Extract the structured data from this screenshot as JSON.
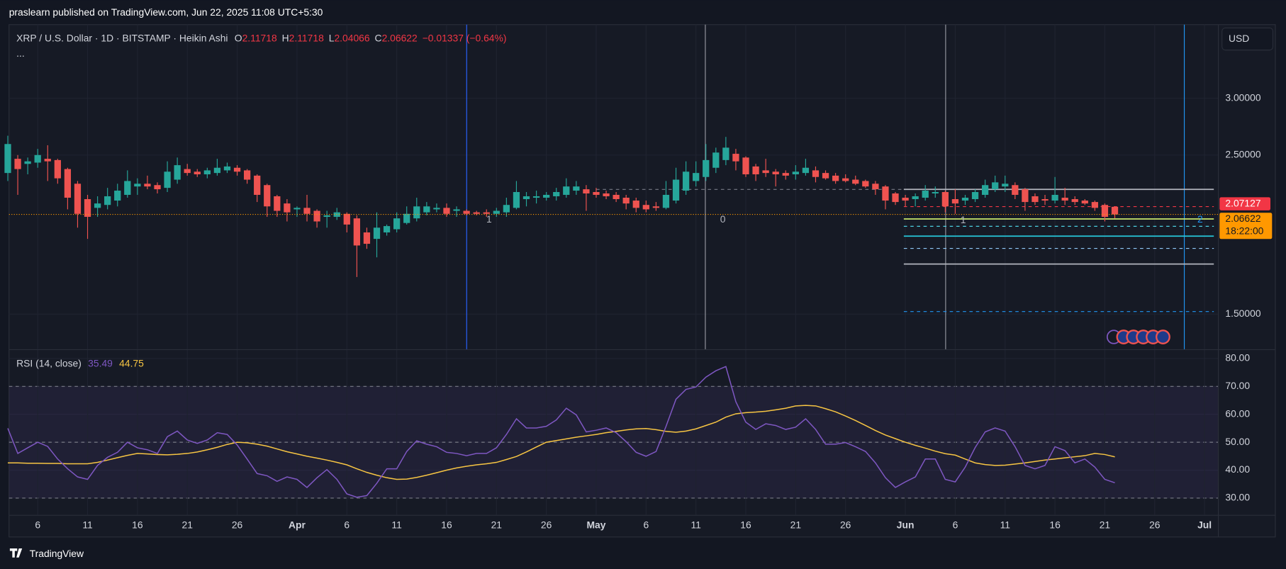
{
  "header": {
    "publish": "praslearn published on TradingView.com, Jun 22, 2025 11:08 UTC+5:30",
    "brand": "TradingView"
  },
  "chart_data": {
    "type": "candlestick",
    "title": "XRP / U.S. Dollar · 1D · BITSTAMP · Heikin Ashi",
    "more": "...",
    "ohlc_labels": [
      "O",
      "H",
      "L",
      "C"
    ],
    "change": "−0.01337 (−0.64%)",
    "currency": "USD",
    "log": true,
    "ylim": [
      1.34,
      3.8
    ],
    "yticks": [
      {
        "value": 3,
        "label": "3.00000"
      },
      {
        "value": 2.5,
        "label": "2.50000"
      },
      {
        "value": 1.5,
        "label": "1.50000"
      }
    ],
    "grid": true,
    "up_color": "#26a69a",
    "down_color": "#ef5350",
    "price_marker": 2.07127,
    "countdown": "18:22:00",
    "fib_labels": [
      "1",
      "0",
      "1",
      "2"
    ],
    "categories": [
      null,
      null,
      null,
      "6",
      null,
      null,
      null,
      null,
      "11",
      null,
      null,
      null,
      null,
      "16",
      null,
      null,
      null,
      null,
      "21",
      null,
      null,
      null,
      null,
      "26",
      null,
      null,
      null,
      null,
      null,
      "Apr",
      null,
      null,
      null,
      null,
      "6",
      null,
      null,
      null,
      null,
      "11",
      null,
      null,
      null,
      null,
      "16",
      null,
      null,
      null,
      null,
      "21",
      null,
      null,
      null,
      null,
      "26",
      null,
      null,
      null,
      null,
      "May",
      null,
      null,
      null,
      null,
      "6",
      null,
      null,
      null,
      null,
      "11",
      null,
      null,
      null,
      null,
      "16",
      null,
      null,
      null,
      null,
      "21",
      null,
      null,
      null,
      null,
      "26",
      null,
      null,
      null,
      null,
      null,
      "Jun",
      null,
      null,
      null,
      null,
      "6",
      null,
      null,
      null,
      null,
      "11",
      null,
      null,
      null,
      null,
      "16",
      null,
      null,
      null,
      null,
      "21",
      null,
      null,
      null,
      null,
      "26",
      null,
      null,
      null,
      null,
      "Jul"
    ],
    "ohlc": [
      [
        2.36,
        2.66,
        2.3,
        2.59
      ],
      [
        2.47,
        2.5,
        2.2,
        2.39
      ],
      [
        2.43,
        2.48,
        2.35,
        2.45
      ],
      [
        2.44,
        2.55,
        2.4,
        2.5
      ],
      [
        2.47,
        2.58,
        2.3,
        2.45
      ],
      [
        2.46,
        2.47,
        2.28,
        2.32
      ],
      [
        2.39,
        2.4,
        2.1,
        2.18
      ],
      [
        2.28,
        2.3,
        1.98,
        2.07
      ],
      [
        2.17,
        2.2,
        1.91,
        2.05
      ],
      [
        2.11,
        2.19,
        2.05,
        2.14
      ],
      [
        2.13,
        2.25,
        2.1,
        2.19
      ],
      [
        2.16,
        2.28,
        2.12,
        2.23
      ],
      [
        2.2,
        2.38,
        2.18,
        2.3
      ],
      [
        2.26,
        2.32,
        2.2,
        2.28
      ],
      [
        2.28,
        2.34,
        2.24,
        2.26
      ],
      [
        2.27,
        2.29,
        2.21,
        2.24
      ],
      [
        2.25,
        2.45,
        2.22,
        2.37
      ],
      [
        2.31,
        2.48,
        2.28,
        2.42
      ],
      [
        2.39,
        2.43,
        2.34,
        2.36
      ],
      [
        2.37,
        2.39,
        2.33,
        2.35
      ],
      [
        2.35,
        2.4,
        2.32,
        2.38
      ],
      [
        2.36,
        2.47,
        2.34,
        2.4
      ],
      [
        2.38,
        2.44,
        2.36,
        2.41
      ],
      [
        2.4,
        2.42,
        2.34,
        2.37
      ],
      [
        2.38,
        2.39,
        2.28,
        2.31
      ],
      [
        2.34,
        2.35,
        2.15,
        2.2
      ],
      [
        2.27,
        2.28,
        2.05,
        2.12
      ],
      [
        2.19,
        2.2,
        2.05,
        2.09
      ],
      [
        2.14,
        2.17,
        2.02,
        2.08
      ],
      [
        2.1,
        2.12,
        2.05,
        2.11
      ],
      [
        2.11,
        2.2,
        2.02,
        2.07
      ],
      [
        2.09,
        2.1,
        1.98,
        2.02
      ],
      [
        2.05,
        2.09,
        1.98,
        2.06
      ],
      [
        2.05,
        2.11,
        2.03,
        2.08
      ],
      [
        2.07,
        2.08,
        1.95,
        2.0
      ],
      [
        2.04,
        2.06,
        1.69,
        1.87
      ],
      [
        1.95,
        1.98,
        1.85,
        1.88
      ],
      [
        1.91,
        2.08,
        1.8,
        1.98
      ],
      [
        1.95,
        2.0,
        1.93,
        1.99
      ],
      [
        1.97,
        2.08,
        1.95,
        2.04
      ],
      [
        2.01,
        2.12,
        2.0,
        2.07
      ],
      [
        2.04,
        2.18,
        2.02,
        2.12
      ],
      [
        2.08,
        2.15,
        2.06,
        2.12
      ],
      [
        2.1,
        2.14,
        2.08,
        2.11
      ],
      [
        2.11,
        2.14,
        2.05,
        2.07
      ],
      [
        2.09,
        2.12,
        2.05,
        2.1
      ],
      [
        2.09,
        2.1,
        2.06,
        2.07
      ],
      [
        2.08,
        2.09,
        2.06,
        2.07
      ],
      [
        2.08,
        2.1,
        2.05,
        2.07
      ],
      [
        2.07,
        2.11,
        2.05,
        2.09
      ],
      [
        2.08,
        2.18,
        2.05,
        2.13
      ],
      [
        2.11,
        2.3,
        2.1,
        2.22
      ],
      [
        2.17,
        2.22,
        2.12,
        2.19
      ],
      [
        2.18,
        2.23,
        2.14,
        2.19
      ],
      [
        2.18,
        2.22,
        2.16,
        2.2
      ],
      [
        2.19,
        2.25,
        2.16,
        2.22
      ],
      [
        2.2,
        2.32,
        2.18,
        2.26
      ],
      [
        2.23,
        2.3,
        2.2,
        2.26
      ],
      [
        2.24,
        2.27,
        2.09,
        2.21
      ],
      [
        2.22,
        2.25,
        2.18,
        2.2
      ],
      [
        2.21,
        2.23,
        2.17,
        2.19
      ],
      [
        2.2,
        2.22,
        2.15,
        2.17
      ],
      [
        2.18,
        2.2,
        2.1,
        2.14
      ],
      [
        2.16,
        2.18,
        2.08,
        2.11
      ],
      [
        2.13,
        2.16,
        2.08,
        2.1
      ],
      [
        2.12,
        2.15,
        2.09,
        2.11
      ],
      [
        2.11,
        2.3,
        2.1,
        2.2
      ],
      [
        2.16,
        2.4,
        2.14,
        2.31
      ],
      [
        2.23,
        2.45,
        2.2,
        2.37
      ],
      [
        2.3,
        2.45,
        2.26,
        2.36
      ],
      [
        2.33,
        2.59,
        2.3,
        2.46
      ],
      [
        2.4,
        2.56,
        2.36,
        2.52
      ],
      [
        2.46,
        2.65,
        2.42,
        2.56
      ],
      [
        2.51,
        2.55,
        2.38,
        2.45
      ],
      [
        2.48,
        2.49,
        2.33,
        2.35
      ],
      [
        2.41,
        2.43,
        2.3,
        2.35
      ],
      [
        2.38,
        2.47,
        2.33,
        2.36
      ],
      [
        2.37,
        2.39,
        2.26,
        2.35
      ],
      [
        2.36,
        2.38,
        2.31,
        2.34
      ],
      [
        2.35,
        2.42,
        2.31,
        2.37
      ],
      [
        2.36,
        2.47,
        2.34,
        2.4
      ],
      [
        2.38,
        2.41,
        2.29,
        2.33
      ],
      [
        2.36,
        2.38,
        2.31,
        2.32
      ],
      [
        2.34,
        2.36,
        2.28,
        2.3
      ],
      [
        2.32,
        2.35,
        2.29,
        2.3
      ],
      [
        2.31,
        2.34,
        2.27,
        2.28
      ],
      [
        2.3,
        2.31,
        2.25,
        2.26
      ],
      [
        2.28,
        2.3,
        2.2,
        2.24
      ],
      [
        2.26,
        2.27,
        2.1,
        2.16
      ],
      [
        2.21,
        2.22,
        2.13,
        2.15
      ],
      [
        2.18,
        2.2,
        2.12,
        2.16
      ],
      [
        2.17,
        2.21,
        2.12,
        2.19
      ],
      [
        2.18,
        2.27,
        2.16,
        2.23
      ],
      [
        2.21,
        2.26,
        2.18,
        2.22
      ],
      [
        2.22,
        2.23,
        2.08,
        2.12
      ],
      [
        2.17,
        2.24,
        2.07,
        2.14
      ],
      [
        2.16,
        2.2,
        2.13,
        2.18
      ],
      [
        2.17,
        2.24,
        2.15,
        2.22
      ],
      [
        2.2,
        2.31,
        2.18,
        2.27
      ],
      [
        2.24,
        2.34,
        2.22,
        2.29
      ],
      [
        2.26,
        2.34,
        2.22,
        2.28
      ],
      [
        2.27,
        2.29,
        2.17,
        2.2
      ],
      [
        2.24,
        2.25,
        2.09,
        2.15
      ],
      [
        2.19,
        2.21,
        2.13,
        2.15
      ],
      [
        2.17,
        2.2,
        2.13,
        2.16
      ],
      [
        2.16,
        2.33,
        2.14,
        2.2
      ],
      [
        2.18,
        2.25,
        2.13,
        2.16
      ],
      [
        2.17,
        2.19,
        2.13,
        2.15
      ],
      [
        2.16,
        2.17,
        2.13,
        2.14
      ],
      [
        2.15,
        2.16,
        2.09,
        2.11
      ],
      [
        2.13,
        2.14,
        2.02,
        2.05
      ],
      [
        2.11718,
        2.11718,
        2.04066,
        2.06622
      ],
      null,
      null,
      null,
      null,
      null,
      null,
      null,
      null,
      null
    ],
    "rsi": {
      "title": "RSI (14, close)",
      "color": "#7e57c2",
      "ma_color": "#f7c543",
      "ylim": [
        24,
        83
      ],
      "yticks": [
        {
          "value": 80,
          "label": "80.00"
        },
        {
          "value": 70,
          "label": "70.00"
        },
        {
          "value": 60,
          "label": "60.00"
        },
        {
          "value": 50,
          "label": "50.00"
        },
        {
          "value": 40,
          "label": "40.00"
        },
        {
          "value": 30,
          "label": "30.00"
        }
      ],
      "levels": [
        70,
        50,
        30
      ],
      "values": [
        55,
        46,
        48,
        50,
        48.5,
        44,
        40.5,
        37.6,
        36.7,
        41.7,
        44.6,
        46.4,
        50,
        48,
        47.3,
        46,
        52,
        54,
        50.8,
        49.6,
        50.8,
        53.4,
        52.8,
        49,
        44,
        38.8,
        38,
        36,
        37.6,
        36.7,
        33.8,
        37.3,
        40.2,
        36.7,
        31.5,
        30.3,
        30.9,
        35.3,
        40.5,
        40.5,
        46.7,
        50.5,
        49.3,
        48.4,
        46.4,
        46,
        45.2,
        46,
        46,
        48,
        52.8,
        58.4,
        55.1,
        55.1,
        55.7,
        58,
        62.2,
        59.8,
        53.7,
        54.3,
        55.1,
        53.4,
        50.2,
        46.4,
        45,
        46.7,
        55.7,
        65.4,
        68.9,
        69.8,
        73.3,
        75.6,
        77.1,
        64.5,
        57.2,
        54.6,
        56.6,
        56,
        54.6,
        55.4,
        58.4,
        54.6,
        49.3,
        49.3,
        49.9,
        48.4,
        46.7,
        42.6,
        37.3,
        33.8,
        35.8,
        37.6,
        44,
        44,
        36.7,
        35.8,
        41.1,
        48.1,
        53.7,
        55.1,
        54,
        48.4,
        41.7,
        40.5,
        41.7,
        48.4,
        47,
        42.6,
        44,
        41.1,
        36.7,
        35.49,
        null,
        null,
        null,
        null,
        null,
        null,
        null,
        null,
        null
      ],
      "ma": [
        42.6,
        42.6,
        42.5,
        42.5,
        42.4,
        42.4,
        42.3,
        42.3,
        42.3,
        42.8,
        43.6,
        44.5,
        45.3,
        46.0,
        45.8,
        45.6,
        45.5,
        45.7,
        46.0,
        46.5,
        47.3,
        48.2,
        49.2,
        50.0,
        49.8,
        49.3,
        48.6,
        47.6,
        46.6,
        45.8,
        45.0,
        44.3,
        43.6,
        42.8,
        41.9,
        40.5,
        39.2,
        38.2,
        37.3,
        36.7,
        36.8,
        37.4,
        38.2,
        39.1,
        40.0,
        40.8,
        41.4,
        41.9,
        42.3,
        42.8,
        43.8,
        44.9,
        46.5,
        48.3,
        50.0,
        50.6,
        51.2,
        51.8,
        52.3,
        52.8,
        53.4,
        53.9,
        54.4,
        54.8,
        54.9,
        54.5,
        53.9,
        53.6,
        54.0,
        54.8,
        56.0,
        57.2,
        59.0,
        60.2,
        60.6,
        60.8,
        61.1,
        61.6,
        62.2,
        63.0,
        63.2,
        63.0,
        62.0,
        60.9,
        59.4,
        57.8,
        56.0,
        54.2,
        52.6,
        51.3,
        50.0,
        48.9,
        47.9,
        46.8,
        45.9,
        45.4,
        44.0,
        42.6,
        42.0,
        41.7,
        41.8,
        42.2,
        42.6,
        43.1,
        43.6,
        44.0,
        44.4,
        44.8,
        45.2,
        46.0,
        45.6,
        44.75,
        null,
        null,
        null,
        null,
        null,
        null,
        null,
        null,
        null
      ]
    }
  }
}
